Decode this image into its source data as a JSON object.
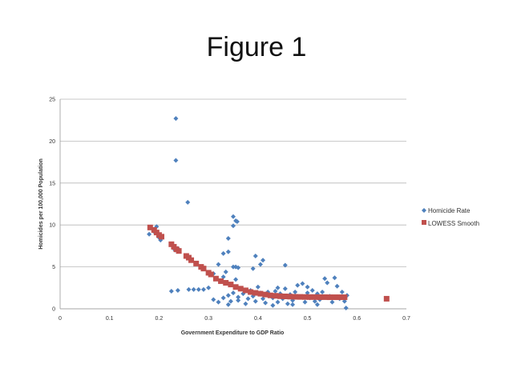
{
  "slide": {
    "title": "Figure 1"
  },
  "chart_data": {
    "type": "scatter",
    "xlabel": "Government Expenditure to GDP Ratio",
    "ylabel": "Homicides per 100,000 Population",
    "xlim": [
      0,
      0.7
    ],
    "ylim": [
      0,
      25
    ],
    "x_ticks": [
      "0",
      "0.1",
      "0.2",
      "0.3",
      "0.4",
      "0.5",
      "0.6",
      "0.7"
    ],
    "y_ticks": [
      "0",
      "5",
      "10",
      "15",
      "20",
      "25"
    ],
    "grid": "horizontal",
    "legend_position": "right",
    "colors": {
      "homicide": "#4f81bd",
      "lowess": "#c0504d"
    },
    "series": [
      {
        "name": "Homicide Rate",
        "marker": "diamond",
        "points": [
          [
            0.234,
            22.7
          ],
          [
            0.234,
            17.7
          ],
          [
            0.258,
            12.7
          ],
          [
            0.35,
            11.0
          ],
          [
            0.355,
            10.5
          ],
          [
            0.358,
            10.4
          ],
          [
            0.35,
            9.9
          ],
          [
            0.18,
            8.9
          ],
          [
            0.19,
            9.2
          ],
          [
            0.195,
            9.8
          ],
          [
            0.2,
            8.5
          ],
          [
            0.203,
            8.2
          ],
          [
            0.232,
            7.0
          ],
          [
            0.238,
            7.2
          ],
          [
            0.34,
            8.4
          ],
          [
            0.33,
            6.6
          ],
          [
            0.34,
            6.8
          ],
          [
            0.32,
            5.3
          ],
          [
            0.35,
            5.0
          ],
          [
            0.355,
            5.0
          ],
          [
            0.36,
            4.9
          ],
          [
            0.39,
            4.8
          ],
          [
            0.395,
            6.3
          ],
          [
            0.405,
            5.3
          ],
          [
            0.41,
            5.8
          ],
          [
            0.455,
            5.2
          ],
          [
            0.31,
            4.2
          ],
          [
            0.33,
            3.8
          ],
          [
            0.335,
            4.4
          ],
          [
            0.355,
            3.5
          ],
          [
            0.225,
            2.1
          ],
          [
            0.238,
            2.2
          ],
          [
            0.26,
            2.3
          ],
          [
            0.27,
            2.3
          ],
          [
            0.28,
            2.3
          ],
          [
            0.29,
            2.3
          ],
          [
            0.3,
            2.5
          ],
          [
            0.31,
            1.1
          ],
          [
            0.32,
            0.8
          ],
          [
            0.33,
            1.3
          ],
          [
            0.34,
            1.6
          ],
          [
            0.345,
            0.9
          ],
          [
            0.35,
            1.9
          ],
          [
            0.36,
            1.4
          ],
          [
            0.37,
            1.8
          ],
          [
            0.375,
            0.6
          ],
          [
            0.38,
            1.2
          ],
          [
            0.385,
            2.2
          ],
          [
            0.39,
            1.5
          ],
          [
            0.395,
            0.9
          ],
          [
            0.4,
            2.6
          ],
          [
            0.405,
            1.9
          ],
          [
            0.41,
            1.2
          ],
          [
            0.415,
            0.7
          ],
          [
            0.42,
            2.0
          ],
          [
            0.425,
            1.6
          ],
          [
            0.43,
            1.3
          ],
          [
            0.435,
            2.1
          ],
          [
            0.44,
            0.8
          ],
          [
            0.445,
            1.8
          ],
          [
            0.45,
            1.2
          ],
          [
            0.455,
            2.4
          ],
          [
            0.46,
            0.6
          ],
          [
            0.465,
            1.7
          ],
          [
            0.47,
            1.0
          ],
          [
            0.475,
            2.0
          ],
          [
            0.48,
            2.8
          ],
          [
            0.485,
            1.4
          ],
          [
            0.49,
            3.0
          ],
          [
            0.495,
            0.8
          ],
          [
            0.5,
            2.6
          ],
          [
            0.505,
            1.3
          ],
          [
            0.51,
            2.2
          ],
          [
            0.515,
            0.9
          ],
          [
            0.52,
            1.8
          ],
          [
            0.525,
            1.1
          ],
          [
            0.53,
            2.0
          ],
          [
            0.535,
            3.6
          ],
          [
            0.54,
            3.1
          ],
          [
            0.545,
            1.5
          ],
          [
            0.55,
            0.8
          ],
          [
            0.555,
            3.7
          ],
          [
            0.56,
            2.7
          ],
          [
            0.565,
            1.2
          ],
          [
            0.57,
            2.0
          ],
          [
            0.575,
            0.9
          ],
          [
            0.578,
            0.1
          ],
          [
            0.58,
            1.6
          ],
          [
            0.34,
            0.5
          ],
          [
            0.43,
            0.4
          ],
          [
            0.36,
            1.0
          ],
          [
            0.44,
            2.5
          ],
          [
            0.47,
            0.5
          ],
          [
            0.5,
            1.9
          ],
          [
            0.52,
            0.5
          ]
        ]
      },
      {
        "name": "LOWESS Smooth",
        "marker": "square",
        "points": [
          [
            0.182,
            9.7
          ],
          [
            0.19,
            9.4
          ],
          [
            0.195,
            9.1
          ],
          [
            0.2,
            8.8
          ],
          [
            0.205,
            8.6
          ],
          [
            0.225,
            7.7
          ],
          [
            0.23,
            7.4
          ],
          [
            0.235,
            7.1
          ],
          [
            0.24,
            6.9
          ],
          [
            0.255,
            6.3
          ],
          [
            0.26,
            6.1
          ],
          [
            0.265,
            5.8
          ],
          [
            0.275,
            5.4
          ],
          [
            0.285,
            5.0
          ],
          [
            0.29,
            4.8
          ],
          [
            0.3,
            4.3
          ],
          [
            0.305,
            4.1
          ],
          [
            0.315,
            3.6
          ],
          [
            0.325,
            3.3
          ],
          [
            0.335,
            3.1
          ],
          [
            0.345,
            2.9
          ],
          [
            0.355,
            2.6
          ],
          [
            0.365,
            2.4
          ],
          [
            0.375,
            2.2
          ],
          [
            0.385,
            2.0
          ],
          [
            0.395,
            1.9
          ],
          [
            0.405,
            1.8
          ],
          [
            0.415,
            1.7
          ],
          [
            0.425,
            1.6
          ],
          [
            0.435,
            1.55
          ],
          [
            0.445,
            1.5
          ],
          [
            0.455,
            1.48
          ],
          [
            0.465,
            1.45
          ],
          [
            0.475,
            1.43
          ],
          [
            0.485,
            1.42
          ],
          [
            0.495,
            1.41
          ],
          [
            0.505,
            1.4
          ],
          [
            0.515,
            1.4
          ],
          [
            0.525,
            1.39
          ],
          [
            0.535,
            1.39
          ],
          [
            0.545,
            1.38
          ],
          [
            0.555,
            1.38
          ],
          [
            0.565,
            1.38
          ],
          [
            0.575,
            1.38
          ],
          [
            0.66,
            1.2
          ]
        ]
      }
    ]
  }
}
